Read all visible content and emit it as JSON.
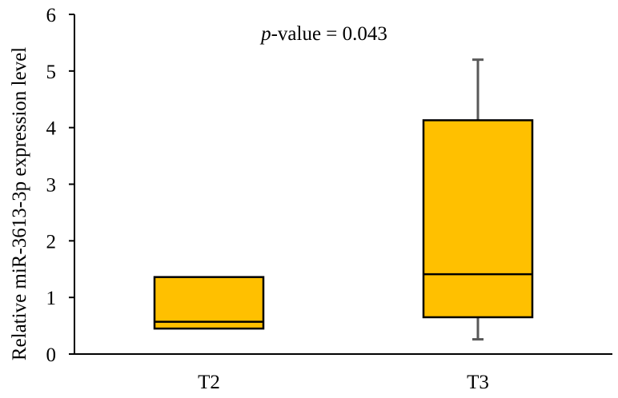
{
  "chart_data": {
    "type": "box",
    "title": "",
    "xlabel": "",
    "ylabel": "Relative miR-3613-3p expression level",
    "ylim": [
      0,
      6
    ],
    "yticks": [
      0,
      1,
      2,
      3,
      4,
      5,
      6
    ],
    "categories": [
      "T2",
      "T3"
    ],
    "boxes": [
      {
        "category": "T2",
        "q1": 0.45,
        "median": 0.57,
        "q3": 1.36,
        "whisker_low": null,
        "whisker_high": null
      },
      {
        "category": "T3",
        "q1": 0.65,
        "median": 1.41,
        "q3": 4.13,
        "whisker_low": 0.26,
        "whisker_high": 5.2
      }
    ],
    "annotation": {
      "italic": "p",
      "rest": "-value = 0.043"
    },
    "grid": false,
    "legend": "none",
    "colors": {
      "box_fill": "#FFC000",
      "box_stroke": "#000000",
      "whisker": "#595959",
      "axis": "#000000"
    }
  }
}
